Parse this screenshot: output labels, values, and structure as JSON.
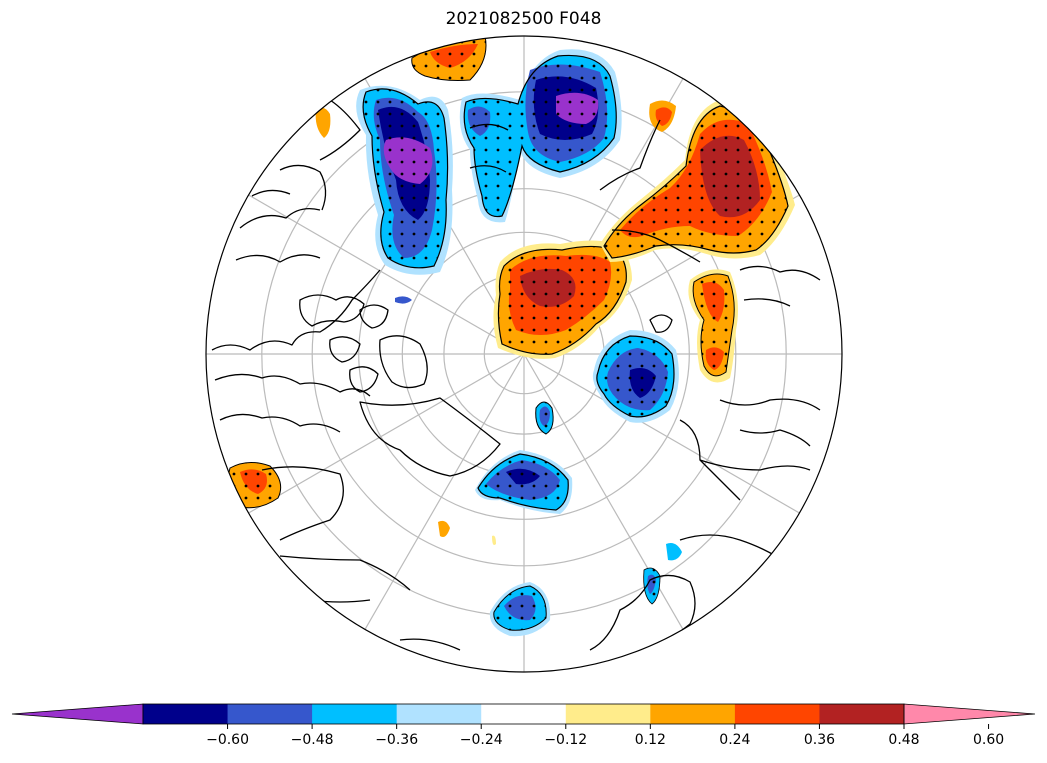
{
  "title": "2021082500 F048",
  "projection": "north-polar-stereographic",
  "graticule": {
    "meridian_step_deg": 30,
    "parallels_deg": [
      80,
      70,
      60,
      50,
      40,
      30
    ]
  },
  "colorbar": {
    "extend": "both",
    "colors": [
      "#9932cc",
      "#00008b",
      "#3657cc",
      "#00bfff",
      "#b0e2ff",
      "#ffffff",
      "#ffec8b",
      "#ffa500",
      "#ff4500",
      "#b22222",
      "#ff88aa"
    ],
    "ticks": [
      "−0.60",
      "−0.48",
      "−0.36",
      "−0.24",
      "−0.12",
      "0.12",
      "0.24",
      "0.36",
      "0.48",
      "0.60"
    ]
  },
  "colors": {
    "coastline": "#000000",
    "gridline": "#bbbbbb",
    "stipple": "#000000"
  }
}
